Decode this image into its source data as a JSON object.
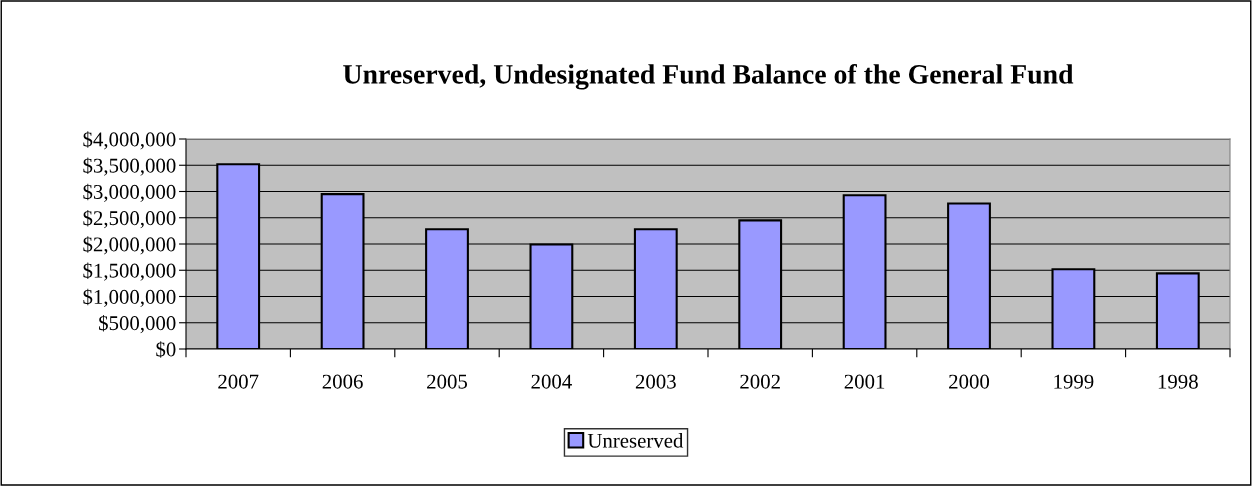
{
  "chart_data": {
    "type": "bar",
    "title": "Unreserved, Undesignated Fund Balance of the General Fund",
    "categories": [
      "2007",
      "2006",
      "2005",
      "2004",
      "2003",
      "2002",
      "2001",
      "2000",
      "1999",
      "1998"
    ],
    "series": [
      {
        "name": "Unreserved",
        "color": "#9999ff",
        "values": [
          3520000,
          2950000,
          2280000,
          1990000,
          2280000,
          2450000,
          2930000,
          2770000,
          1520000,
          1440000
        ]
      }
    ],
    "ylim": [
      0,
      4000000
    ],
    "yticks": [
      {
        "value": 0,
        "label": "$0"
      },
      {
        "value": 500000,
        "label": "$500,000"
      },
      {
        "value": 1000000,
        "label": "$1,000,000"
      },
      {
        "value": 1500000,
        "label": "$1,500,000"
      },
      {
        "value": 2000000,
        "label": "$2,000,000"
      },
      {
        "value": 2500000,
        "label": "$2,500,000"
      },
      {
        "value": 3000000,
        "label": "$3,000,000"
      },
      {
        "value": 3500000,
        "label": "$3,500,000"
      },
      {
        "value": 4000000,
        "label": "$4,000,000"
      }
    ],
    "grid": "y",
    "legend": "bottom"
  }
}
